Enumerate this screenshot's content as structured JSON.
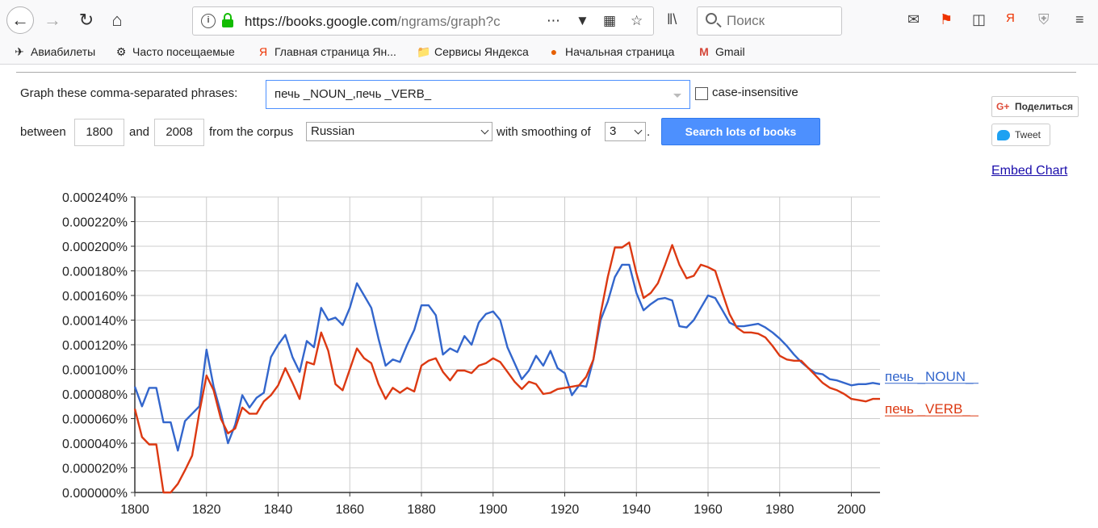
{
  "browser": {
    "url_host": "https://books.google.com",
    "url_path": "/ngrams/graph?c",
    "search_placeholder": "Поиск",
    "bookmarks": [
      "Авиабилеты",
      "Часто посещаемые",
      "Главная страница Ян...",
      "Сервисы Яндекса",
      "Начальная страница",
      "Gmail"
    ]
  },
  "form": {
    "phrases_label": "Graph these comma-separated phrases:",
    "phrases_value": "печь _NOUN_,печь _VERB_",
    "case_label": "case-insensitive",
    "between_label": "between",
    "start_year": "1800",
    "and_label": "and",
    "end_year": "2008",
    "corpus_label": "from the corpus",
    "corpus_value": "Russian",
    "smoothing_label": "with smoothing of",
    "smoothing_value": "3",
    "period": ".",
    "search_button": "Search lots of books"
  },
  "share": {
    "gplus_label": "Поделиться",
    "gplus_icon": "G+",
    "tweet_label": "Tweet",
    "embed_label": "Embed Chart"
  },
  "chart_data": {
    "type": "line",
    "x": [
      1800,
      1802,
      1804,
      1806,
      1808,
      1810,
      1812,
      1814,
      1816,
      1818,
      1820,
      1822,
      1824,
      1826,
      1828,
      1830,
      1832,
      1834,
      1836,
      1838,
      1840,
      1842,
      1844,
      1846,
      1848,
      1850,
      1852,
      1854,
      1856,
      1858,
      1860,
      1862,
      1864,
      1866,
      1868,
      1870,
      1872,
      1874,
      1876,
      1878,
      1880,
      1882,
      1884,
      1886,
      1888,
      1890,
      1892,
      1894,
      1896,
      1898,
      1900,
      1902,
      1904,
      1906,
      1908,
      1910,
      1912,
      1914,
      1916,
      1918,
      1920,
      1922,
      1924,
      1926,
      1928,
      1930,
      1932,
      1934,
      1936,
      1938,
      1940,
      1942,
      1944,
      1946,
      1948,
      1950,
      1952,
      1954,
      1956,
      1958,
      1960,
      1962,
      1964,
      1966,
      1968,
      1970,
      1972,
      1974,
      1976,
      1978,
      1980,
      1982,
      1984,
      1986,
      1988,
      1990,
      1992,
      1994,
      1996,
      1998,
      2000,
      2002,
      2004,
      2006,
      2008
    ],
    "series": [
      {
        "name": "печь _NOUN_",
        "color": "#3366cc",
        "values": [
          8.6e-05,
          7e-05,
          8.5e-05,
          8.5e-05,
          5.7e-05,
          5.7e-05,
          3.4e-05,
          5.8e-05,
          6.4e-05,
          7e-05,
          0.000116,
          8.6e-05,
          6.5e-05,
          4e-05,
          5.5e-05,
          7.9e-05,
          6.9e-05,
          7.7e-05,
          8.1e-05,
          0.00011,
          0.00012,
          0.000128,
          0.00011,
          9.8e-05,
          0.000123,
          0.000118,
          0.00015,
          0.00014,
          0.000142,
          0.000136,
          0.00015,
          0.00017,
          0.00016,
          0.00015,
          0.000125,
          0.000103,
          0.000108,
          0.000106,
          0.00012,
          0.000132,
          0.000152,
          0.000152,
          0.000144,
          0.000112,
          0.000117,
          0.000114,
          0.000127,
          0.00012,
          0.000138,
          0.000145,
          0.000147,
          0.00014,
          0.000118,
          0.000105,
          9.2e-05,
          9.9e-05,
          0.000111,
          0.000103,
          0.000115,
          0.000101,
          9.7e-05,
          7.9e-05,
          8.7e-05,
          8.6e-05,
          0.000108,
          0.00014,
          0.000155,
          0.000175,
          0.000185,
          0.000185,
          0.000162,
          0.000148,
          0.000153,
          0.000157,
          0.000158,
          0.000156,
          0.000135,
          0.000134,
          0.00014,
          0.00015,
          0.00016,
          0.000158,
          0.000148,
          0.000138,
          0.000135,
          0.000135,
          0.000136,
          0.000137,
          0.000134,
          0.00013,
          0.000125,
          0.000119,
          0.000112,
          0.000106,
          0.000101,
          9.7e-05,
          9.6e-05,
          9.2e-05,
          9.1e-05,
          8.9e-05,
          8.7e-05,
          8.8e-05,
          8.8e-05,
          8.9e-05,
          8.8e-05
        ]
      },
      {
        "name": "печь _VERB_",
        "color": "#dc3912",
        "values": [
          6.8e-05,
          4.5e-05,
          3.9e-05,
          3.9e-05,
          0.0,
          0.0,
          7e-06,
          1.8e-05,
          3e-05,
          6.5e-05,
          9.5e-05,
          8.3e-05,
          6e-05,
          4.8e-05,
          5.2e-05,
          6.9e-05,
          6.4e-05,
          6.4e-05,
          7.4e-05,
          7.9e-05,
          8.7e-05,
          0.000101,
          8.9e-05,
          7.6e-05,
          0.000106,
          0.000104,
          0.00013,
          0.000115,
          8.8e-05,
          8.3e-05,
          0.0001,
          0.000117,
          0.000109,
          0.000105,
          8.8e-05,
          7.6e-05,
          8.5e-05,
          8.1e-05,
          8.5e-05,
          8.2e-05,
          0.000103,
          0.000107,
          0.000109,
          9.8e-05,
          9.1e-05,
          9.9e-05,
          9.9e-05,
          9.7e-05,
          0.000103,
          0.000105,
          0.000109,
          0.000106,
          9.8e-05,
          9e-05,
          8.4e-05,
          9e-05,
          8.8e-05,
          8e-05,
          8.1e-05,
          8.4e-05,
          8.5e-05,
          8.6e-05,
          8.7e-05,
          9.4e-05,
          0.000108,
          0.000145,
          0.000175,
          0.000199,
          0.000199,
          0.000203,
          0.000178,
          0.000158,
          0.000162,
          0.00017,
          0.000185,
          0.000201,
          0.000185,
          0.000174,
          0.000176,
          0.000185,
          0.000183,
          0.00018,
          0.000162,
          0.000145,
          0.000134,
          0.00013,
          0.00013,
          0.000129,
          0.000126,
          0.000119,
          0.000111,
          0.000108,
          0.000107,
          0.000107,
          0.000101,
          9.5e-05,
          8.9e-05,
          8.5e-05,
          8.3e-05,
          8e-05,
          7.6e-05,
          7.5e-05,
          7.4e-05,
          7.6e-05,
          7.6e-05
        ]
      }
    ],
    "xlim": [
      1800,
      2008
    ],
    "ylim": [
      0,
      0.00024
    ],
    "x_ticks": [
      "1800",
      "1820",
      "1840",
      "1860",
      "1880",
      "1900",
      "1920",
      "1940",
      "1960",
      "1980",
      "2000"
    ],
    "x_tick_values": [
      1800,
      1820,
      1840,
      1860,
      1880,
      1900,
      1920,
      1940,
      1960,
      1980,
      2000
    ],
    "y_ticks": [
      "0.000000%",
      "0.000020%",
      "0.000040%",
      "0.000060%",
      "0.000080%",
      "0.000100%",
      "0.000120%",
      "0.000140%",
      "0.000160%",
      "0.000180%",
      "0.000200%",
      "0.000220%",
      "0.000240%"
    ],
    "y_tick_values": [
      0,
      2e-05,
      4e-05,
      6e-05,
      8e-05,
      0.0001,
      0.00012,
      0.00014,
      0.00016,
      0.00018,
      0.0002,
      0.00022,
      0.00024
    ],
    "grid": true,
    "legend": "right, at end of lines"
  }
}
